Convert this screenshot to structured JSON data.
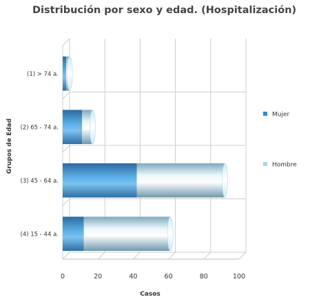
{
  "chart_data": {
    "type": "bar",
    "orientation": "horizontal",
    "stacked": true,
    "title": "Distribución por sexo y edad. (Hospitalización)",
    "xlabel": "Casos",
    "ylabel": "Grupos de Edad",
    "categories": [
      "(1) > 74 a.",
      "(2) 65 - 74 a.",
      "(3) 45 - 64 a.",
      "(4) 15 - 44 a."
    ],
    "series": [
      {
        "name": "Mujer",
        "color": "#3a87c8",
        "values": [
          2,
          11,
          42,
          12
        ]
      },
      {
        "name": "Hombre",
        "color": "#a9d6ef",
        "values": [
          2,
          6,
          50,
          49
        ]
      }
    ],
    "xlim": [
      0,
      100
    ],
    "xticks": [
      0,
      20,
      40,
      60,
      80,
      100
    ],
    "grid": true,
    "legend_position": "right"
  }
}
